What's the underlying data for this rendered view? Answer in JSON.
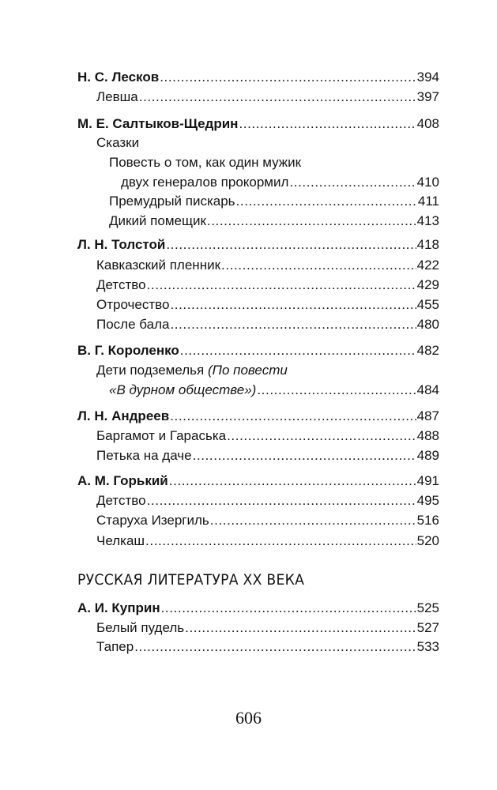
{
  "toc": {
    "leskov": {
      "author": "Н. С. Лесков",
      "page": "394",
      "works": [
        {
          "title": "Левша",
          "page": "397"
        }
      ]
    },
    "saltykov": {
      "author": "М. Е. Салтыков-Щедрин",
      "page": "408",
      "group": "Сказки",
      "works": [
        {
          "title_line1": "Повесть о том, как один мужик",
          "title_line2": "двух генералов прокормил",
          "page": "410"
        },
        {
          "title": "Премудрый пискарь",
          "page": "411"
        },
        {
          "title": "Дикий помещик",
          "page": "413"
        }
      ]
    },
    "tolstoy": {
      "author": "Л. Н. Толстой",
      "page": "418",
      "works": [
        {
          "title": "Кавказский пленник",
          "page": "422"
        },
        {
          "title": "Детство",
          "page": "429"
        },
        {
          "title": "Отрочество",
          "page": "455"
        },
        {
          "title": "После бала",
          "page": "480"
        }
      ]
    },
    "korolenko": {
      "author": "В. Г. Короленко",
      "page": "482",
      "works": [
        {
          "title": "Дети подземелья",
          "note_line1": "(По повести",
          "note_line2": "«В дурном обществе»)",
          "page": "484"
        }
      ]
    },
    "andreev": {
      "author": "Л. Н. Андреев",
      "page": "487",
      "works": [
        {
          "title": "Баргамот и Гараська",
          "page": "488"
        },
        {
          "title": "Петька на даче",
          "page": "489"
        }
      ]
    },
    "gorky": {
      "author": "А. М. Горький",
      "page": "491",
      "works": [
        {
          "title": "Детство",
          "page": "495"
        },
        {
          "title": "Старуха Изергиль",
          "page": "516"
        },
        {
          "title": "Челкаш",
          "page": "520"
        }
      ]
    },
    "section_heading": "РУССКАЯ ЛИТЕРАТУРА XX ВЕКА",
    "kuprin": {
      "author": "А. И. Куприн",
      "page": "525",
      "works": [
        {
          "title": "Белый пудель",
          "page": "527"
        },
        {
          "title": "Тапер",
          "page": "533"
        }
      ]
    }
  },
  "page_number": "606"
}
